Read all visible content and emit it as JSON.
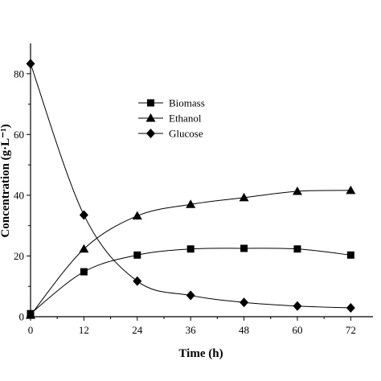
{
  "chart_data": {
    "type": "line",
    "xlabel": "Time (h)",
    "ylabel": "Concentration (g·L⁻¹)",
    "xlim": [
      0,
      77
    ],
    "ylim": [
      0,
      90
    ],
    "x_ticks": [
      0,
      12,
      24,
      36,
      48,
      60,
      72
    ],
    "y_ticks": [
      0,
      20,
      40,
      60,
      80
    ],
    "grid": false,
    "legend_position": "upper-middle",
    "x": [
      0,
      12,
      24,
      36,
      48,
      60,
      72
    ],
    "series": [
      {
        "name": "Biomass",
        "marker": "square",
        "values": [
          1,
          14.8,
          20.3,
          22.3,
          22.5,
          22.3,
          20.3
        ]
      },
      {
        "name": "Ethanol",
        "marker": "triangle",
        "values": [
          0.5,
          22.3,
          33.2,
          37.0,
          39.2,
          41.3,
          41.6
        ]
      },
      {
        "name": "Glucose",
        "marker": "diamond",
        "values": [
          83.3,
          33.5,
          11.7,
          7.0,
          4.7,
          3.5,
          2.9
        ]
      }
    ],
    "colors": {
      "line": "#000000",
      "marker": "#000000"
    }
  }
}
